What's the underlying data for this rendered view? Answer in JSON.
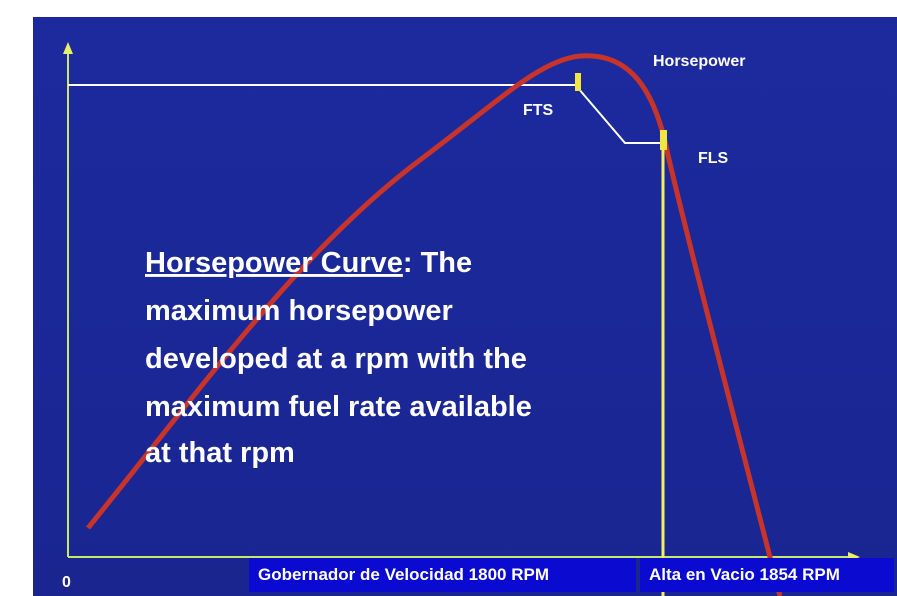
{
  "curve_label": "Horsepower",
  "markers": {
    "fts": "FTS",
    "fls": "FLS"
  },
  "origin_label": "0",
  "description": {
    "heading": "Horsepower Curve",
    "heading_rest": ": The",
    "lines": [
      "maximum horsepower",
      "developed at a rpm with the",
      "maximum fuel rate available",
      "at that rpm"
    ]
  },
  "footer": {
    "governor": "Gobernador de Velocidad 1800 RPM",
    "idle": "Alta en Vacio 1854 RPM"
  }
}
